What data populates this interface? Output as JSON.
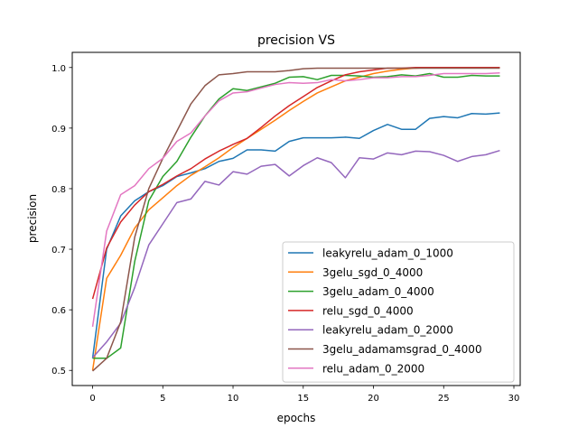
{
  "chart_data": {
    "type": "line",
    "title": "precision VS",
    "xlabel": "epochs",
    "ylabel": "precision",
    "xlim": [
      -1.45,
      30.45
    ],
    "ylim": [
      0.475,
      1.025
    ],
    "xticks": [
      0,
      5,
      10,
      15,
      20,
      25,
      30
    ],
    "xtick_labels": [
      "0",
      "5",
      "10",
      "15",
      "20",
      "25",
      "30"
    ],
    "yticks": [
      0.5,
      0.6,
      0.7,
      0.8,
      0.9,
      1.0
    ],
    "ytick_labels": [
      "0.5",
      "0.6",
      "0.7",
      "0.8",
      "0.9",
      "1.0"
    ],
    "grid": false,
    "legend_position": "lower-right",
    "x": [
      0,
      1,
      2,
      3,
      4,
      5,
      6,
      7,
      8,
      9,
      10,
      11,
      12,
      13,
      14,
      15,
      16,
      17,
      18,
      19,
      20,
      21,
      22,
      23,
      24,
      25,
      26,
      27,
      28,
      29
    ],
    "series": [
      {
        "name": "leakyrelu_adam_0_1000",
        "color": "#1f77b4",
        "values": [
          0.52,
          0.7,
          0.755,
          0.78,
          0.795,
          0.805,
          0.82,
          0.826,
          0.833,
          0.845,
          0.85,
          0.864,
          0.864,
          0.862,
          0.878,
          0.884,
          0.884,
          0.884,
          0.885,
          0.883,
          0.896,
          0.906,
          0.898,
          0.898,
          0.916,
          0.919,
          0.917,
          0.924,
          0.923,
          0.925
        ]
      },
      {
        "name": "3gelu_sgd_0_4000",
        "color": "#ff7f0e",
        "values": [
          0.5,
          0.652,
          0.69,
          0.735,
          0.765,
          0.785,
          0.805,
          0.822,
          0.836,
          0.851,
          0.868,
          0.883,
          0.898,
          0.913,
          0.929,
          0.944,
          0.958,
          0.968,
          0.978,
          0.984,
          0.99,
          0.994,
          0.997,
          0.999,
          1.0,
          1.0,
          1.0,
          1.0,
          1.0,
          1.0
        ]
      },
      {
        "name": "3gelu_adam_0_4000",
        "color": "#2ca02c",
        "values": [
          0.52,
          0.52,
          0.537,
          0.68,
          0.78,
          0.82,
          0.845,
          0.885,
          0.92,
          0.948,
          0.965,
          0.962,
          0.968,
          0.974,
          0.984,
          0.985,
          0.98,
          0.987,
          0.987,
          0.986,
          0.984,
          0.985,
          0.988,
          0.986,
          0.99,
          0.984,
          0.984,
          0.987,
          0.986,
          0.986
        ]
      },
      {
        "name": "relu_sgd_0_4000",
        "color": "#d62728",
        "values": [
          0.618,
          0.702,
          0.745,
          0.773,
          0.795,
          0.807,
          0.821,
          0.833,
          0.849,
          0.862,
          0.873,
          0.883,
          0.901,
          0.92,
          0.937,
          0.952,
          0.967,
          0.978,
          0.988,
          0.993,
          0.996,
          0.999,
          0.999,
          1.0,
          1.0,
          1.0,
          1.0,
          1.0,
          1.0,
          1.0
        ]
      },
      {
        "name": "leakyrelu_adam_0_2000",
        "color": "#9467bd",
        "values": [
          0.521,
          0.547,
          0.578,
          0.637,
          0.707,
          0.742,
          0.777,
          0.783,
          0.812,
          0.806,
          0.828,
          0.824,
          0.837,
          0.84,
          0.821,
          0.838,
          0.851,
          0.843,
          0.818,
          0.851,
          0.849,
          0.859,
          0.856,
          0.862,
          0.861,
          0.855,
          0.845,
          0.853,
          0.856,
          0.863
        ]
      },
      {
        "name": "3gelu_adamamsgrad_0_4000",
        "color": "#8c564b",
        "values": [
          0.499,
          0.52,
          0.58,
          0.72,
          0.8,
          0.85,
          0.895,
          0.94,
          0.97,
          0.988,
          0.99,
          0.993,
          0.993,
          0.993,
          0.995,
          0.998,
          0.999,
          0.999,
          0.999,
          0.999,
          0.999,
          0.999,
          0.999,
          0.999,
          0.999,
          0.999,
          0.999,
          0.999,
          0.999,
          0.999
        ]
      },
      {
        "name": "relu_adam_0_2000",
        "color": "#e377c2",
        "values": [
          0.572,
          0.73,
          0.79,
          0.805,
          0.833,
          0.85,
          0.878,
          0.892,
          0.92,
          0.945,
          0.958,
          0.96,
          0.966,
          0.972,
          0.975,
          0.974,
          0.975,
          0.98,
          0.978,
          0.98,
          0.983,
          0.983,
          0.985,
          0.985,
          0.987,
          0.99,
          0.99,
          0.99,
          0.99,
          0.991
        ]
      }
    ]
  }
}
